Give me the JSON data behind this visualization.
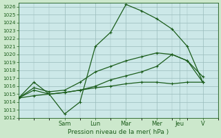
{
  "title": "",
  "xlabel": "Pression niveau de la mer( hPa )",
  "ylabel": "",
  "ylim": [
    1012,
    1026.5
  ],
  "yticks": [
    1012,
    1013,
    1014,
    1015,
    1016,
    1017,
    1018,
    1019,
    1020,
    1021,
    1022,
    1023,
    1024,
    1025,
    1026
  ],
  "x_day_labels": [
    "Sam",
    "Lun",
    "Mar",
    "Mer",
    "Jeu",
    "V"
  ],
  "x_day_positions": [
    3,
    5,
    7,
    9,
    10.5,
    12
  ],
  "xlim": [
    0,
    13
  ],
  "background_color": "#cce8cc",
  "plot_bg_color": "#cce8e8",
  "grid_color": "#99bbbb",
  "line_color": "#1a5c1a",
  "series": [
    {
      "x": [
        0,
        1,
        2,
        3,
        4,
        5,
        6,
        7,
        8,
        9,
        10,
        11,
        12
      ],
      "y": [
        1014.5,
        1016.5,
        1015.0,
        1012.5,
        1014.0,
        1021.0,
        1022.8,
        1026.3,
        1025.5,
        1024.5,
        1023.2,
        1021.0,
        1016.5
      ]
    },
    {
      "x": [
        0,
        1,
        2,
        3,
        4,
        5,
        6,
        7,
        8,
        9,
        10,
        11,
        12
      ],
      "y": [
        1014.5,
        1015.5,
        1015.0,
        1015.2,
        1015.5,
        1016.0,
        1016.8,
        1017.3,
        1017.8,
        1018.5,
        1020.0,
        1019.2,
        1016.5
      ]
    },
    {
      "x": [
        0,
        1,
        2,
        3,
        4,
        5,
        6,
        7,
        8,
        9,
        10,
        11,
        12
      ],
      "y": [
        1014.5,
        1015.8,
        1015.3,
        1015.5,
        1016.5,
        1017.8,
        1018.5,
        1019.2,
        1019.7,
        1020.2,
        1020.0,
        1019.2,
        1017.2
      ]
    },
    {
      "x": [
        0,
        1,
        2,
        3,
        4,
        5,
        6,
        7,
        8,
        9,
        10,
        11,
        12
      ],
      "y": [
        1014.5,
        1014.8,
        1015.0,
        1015.2,
        1015.5,
        1015.8,
        1016.0,
        1016.3,
        1016.5,
        1016.5,
        1016.3,
        1016.5,
        1016.5
      ]
    }
  ],
  "marker": "+",
  "markersize": 3.5,
  "linewidth": 0.9,
  "xlabel_fontsize": 6.5,
  "ytick_fontsize": 5.2,
  "xtick_fontsize": 6.0
}
